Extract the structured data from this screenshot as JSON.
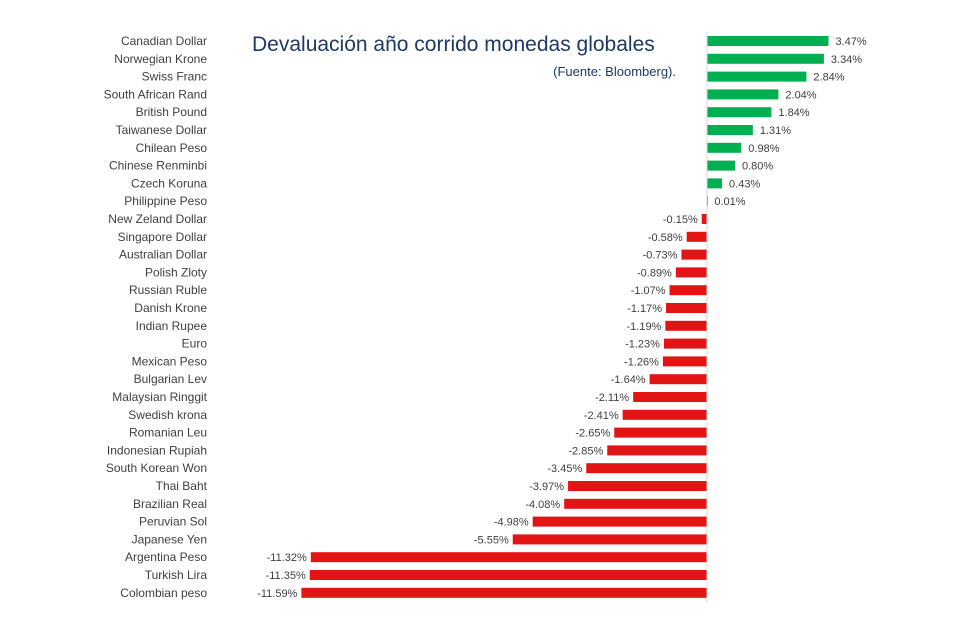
{
  "chart_data": {
    "type": "bar",
    "orientation": "horizontal",
    "title": "Devaluación año corrido monedas globales",
    "subtitle": "(Fuente:  Bloomberg).",
    "categories": [
      "Canadian Dollar",
      "Norwegian Krone",
      "Swiss Franc",
      "South African Rand",
      "British Pound",
      "Taiwanese Dollar",
      "Chilean Peso",
      "Chinese Renminbi",
      "Czech Koruna",
      "Philippine Peso",
      "New Zeland Dollar",
      "Singapore Dollar",
      "Australian Dollar",
      "Polish Zloty",
      "Russian Ruble",
      "Danish Krone",
      "Indian Rupee",
      "Euro",
      "Mexican Peso",
      "Bulgarian Lev",
      "Malaysian Ringgit",
      "Swedish krona",
      "Romanian Leu",
      "Indonesian Rupiah",
      "South Korean Won",
      "Thai Baht",
      "Brazilian Real",
      "Peruvian Sol",
      "Japanese Yen",
      "Argentina Peso",
      "Turkish Lira",
      "Colombian peso"
    ],
    "values": [
      3.47,
      3.34,
      2.84,
      2.04,
      1.84,
      1.31,
      0.98,
      0.8,
      0.43,
      0.01,
      -0.15,
      -0.58,
      -0.73,
      -0.89,
      -1.07,
      -1.17,
      -1.19,
      -1.23,
      -1.26,
      -1.64,
      -2.11,
      -2.41,
      -2.65,
      -2.85,
      -3.45,
      -3.97,
      -4.08,
      -4.98,
      -5.55,
      -11.32,
      -11.35,
      -11.59
    ],
    "data_labels": [
      "3.47%",
      "3.34%",
      "2.84%",
      "2.04%",
      "1.84%",
      "1.31%",
      "0.98%",
      "0.80%",
      "0.43%",
      "0.01%",
      "-0.15%",
      "-0.58%",
      "-0.73%",
      "-0.89%",
      "-1.07%",
      "-1.17%",
      "-1.19%",
      "-1.23%",
      "-1.26%",
      "-1.64%",
      "-2.11%",
      "-2.41%",
      "-2.65%",
      "-2.85%",
      "-3.45%",
      "-3.97%",
      "-4.08%",
      "-4.98%",
      "-5.55%",
      "-11.32%",
      "-11.35%",
      "-11.59%"
    ],
    "colors": {
      "positive": "#00b050",
      "negative": "#e31414",
      "axis": "#d9d9d9",
      "title": "#1f3864"
    },
    "grid": false,
    "legend": "none"
  }
}
